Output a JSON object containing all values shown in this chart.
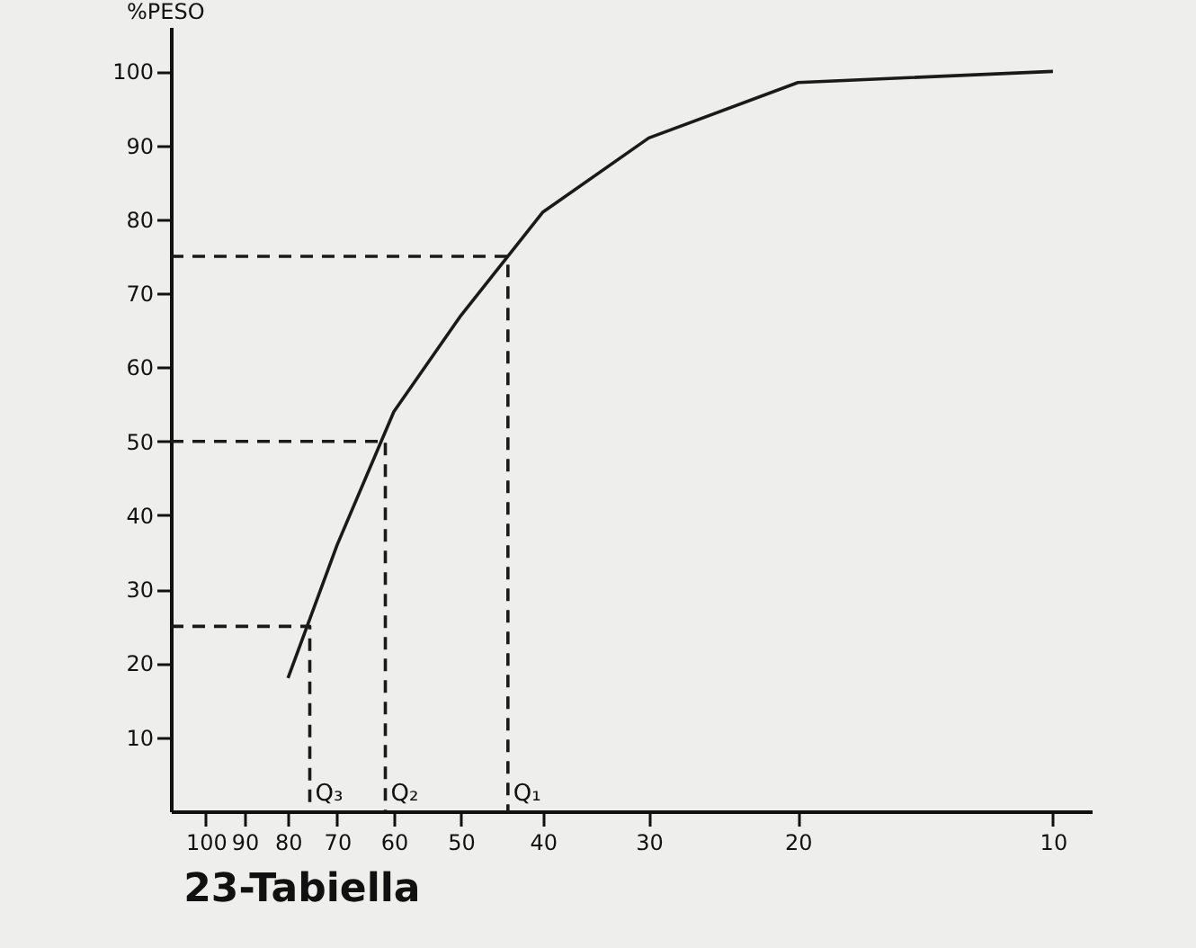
{
  "chart_data": {
    "type": "line",
    "title": "23-Tabiella",
    "ylabel": "%PESO",
    "x": [
      80,
      70,
      60,
      50,
      40,
      30,
      20,
      10
    ],
    "series": [
      {
        "color": "#1a1a1a",
        "values": [
          18,
          36,
          54,
          67,
          81,
          91,
          98.5,
          100
        ]
      },
      {
        "type": "line",
        "line_style": "dashed",
        "color": "#1a1a1a",
        "x": [
          110,
          75.4,
          75.4
        ],
        "values": [
          25,
          25,
          0
        ]
      },
      {
        "type": "line",
        "line_style": "dashed",
        "color": "#1a1a1a",
        "x": [
          110,
          61.4,
          61.4
        ],
        "values": [
          50,
          50,
          0
        ]
      },
      {
        "type": "line",
        "line_style": "dashed",
        "color": "#1a1a1a",
        "x": [
          110,
          44,
          44
        ],
        "values": [
          75,
          75,
          0
        ]
      }
    ],
    "annotations": [
      {
        "text": "Q₃",
        "x": 75.4,
        "y": 0
      },
      {
        "text": "Q₂",
        "x": 61.4,
        "y": 0
      },
      {
        "text": "Q₁",
        "x": 44,
        "y": 0
      }
    ],
    "log": "x",
    "xlim": [
      110,
      9
    ],
    "xticks": [
      100,
      90,
      80,
      70,
      60,
      50,
      40,
      30,
      20,
      10
    ],
    "ylim": [
      0,
      106
    ],
    "yticks": [
      10,
      20,
      30,
      40,
      50,
      60,
      70,
      80,
      90,
      100
    ],
    "grid": false,
    "marker": "none",
    "line_style": "solid"
  }
}
